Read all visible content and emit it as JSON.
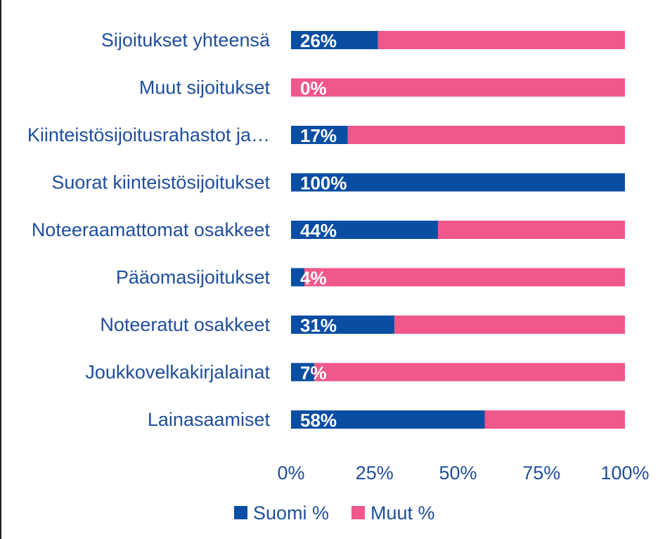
{
  "chart_data": {
    "type": "bar",
    "orientation": "horizontal",
    "stacked": "percent",
    "categories": [
      "Sijoitukset yhteensä",
      "Muut sijoitukset",
      "Kiinteistösijoitusrahastot ja…",
      "Suorat kiinteistösijoitukset",
      "Noteeraamattomat osakkeet",
      "Pääomasijoitukset",
      "Noteeratut osakkeet",
      "Joukkovelkakirjalainat",
      "Lainasaamiset"
    ],
    "series": [
      {
        "name": "Suomi %",
        "color": "#0a4ea3",
        "values": [
          26,
          0,
          17,
          100,
          44,
          4,
          31,
          7,
          58
        ],
        "data_labels": [
          "26%",
          "0%",
          "17%",
          "100%",
          "44%",
          "4%",
          "31%",
          "7%",
          "58%"
        ]
      },
      {
        "name": "Muut %",
        "color": "#f0588a",
        "values": [
          74,
          100,
          83,
          0,
          56,
          96,
          69,
          93,
          42
        ]
      }
    ],
    "x_ticks": [
      "0%",
      "25%",
      "50%",
      "75%",
      "100%"
    ],
    "xlim": [
      0,
      100
    ],
    "grid": false,
    "legend_position": "bottom",
    "label_color": "#1f4e9c"
  }
}
